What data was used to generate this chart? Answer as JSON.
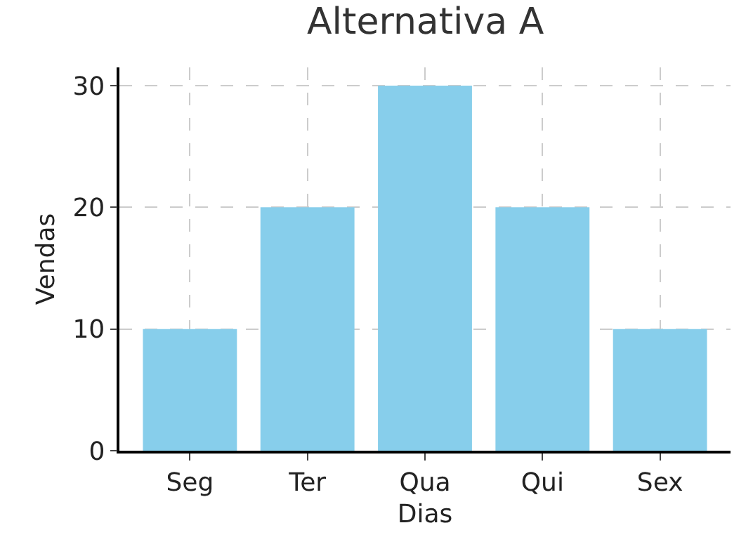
{
  "chart_data": {
    "type": "bar",
    "title": "Alternativa A",
    "xlabel": "Dias",
    "ylabel": "Vendas",
    "categories": [
      "Seg",
      "Ter",
      "Qua",
      "Qui",
      "Sex"
    ],
    "values": [
      10,
      20,
      30,
      20,
      10
    ],
    "color": "#87ceeb",
    "ylim": [
      0,
      31.5
    ],
    "yticks": [
      0,
      10,
      20,
      30
    ],
    "grid": true
  }
}
